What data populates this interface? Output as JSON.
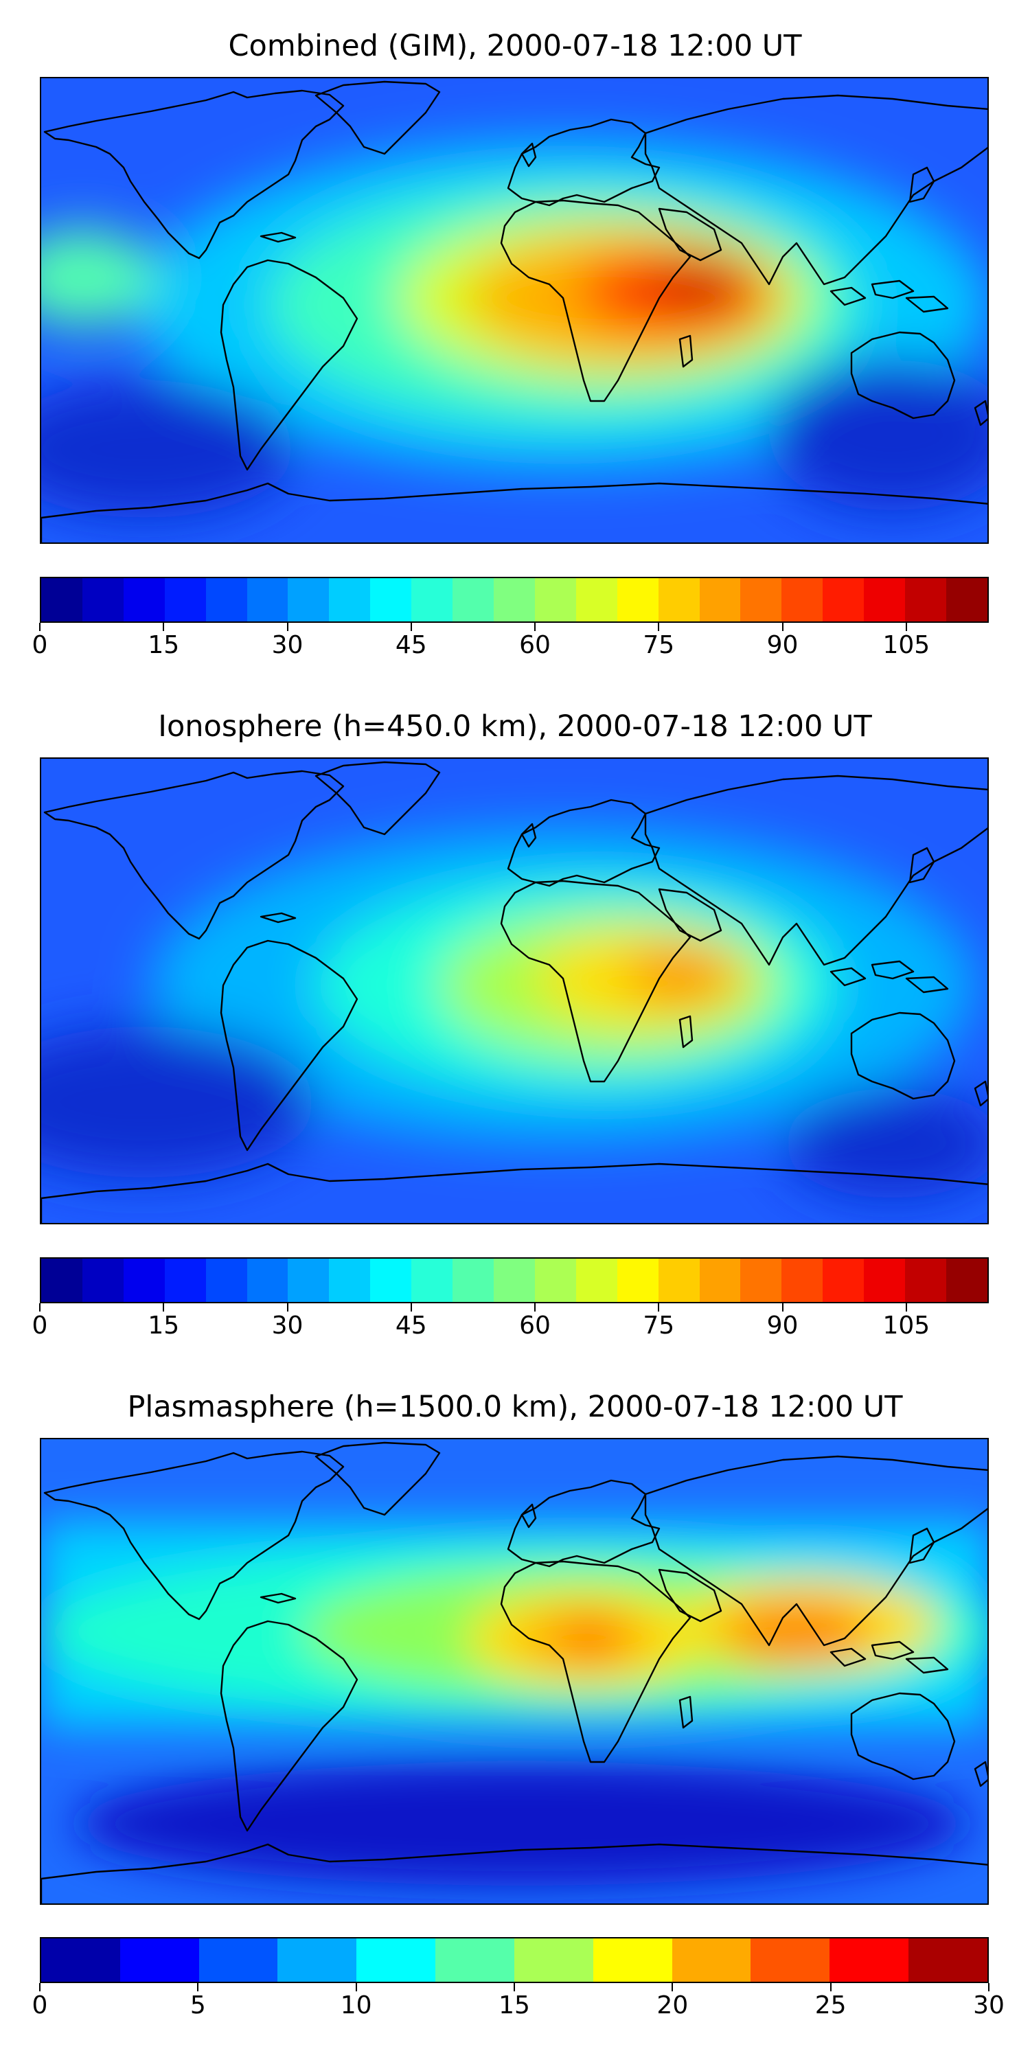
{
  "panels": [
    {
      "title": "Combined (GIM), 2000-07-18 12:00 UT",
      "colorbar": {
        "min": 0,
        "max": 115,
        "step": 5,
        "ticks": [
          "0",
          "15",
          "30",
          "45",
          "60",
          "75",
          "90",
          "105"
        ],
        "tick_values": [
          0,
          15,
          30,
          45,
          60,
          75,
          90,
          105
        ]
      }
    },
    {
      "title": "Ionosphere  (h=450.0 km), 2000-07-18 12:00 UT",
      "colorbar": {
        "min": 0,
        "max": 115,
        "step": 5,
        "ticks": [
          "0",
          "15",
          "30",
          "45",
          "60",
          "75",
          "90",
          "105"
        ],
        "tick_values": [
          0,
          15,
          30,
          45,
          60,
          75,
          90,
          105
        ]
      }
    },
    {
      "title": "Plasmasphere (h=1500.0 km), 2000-07-18 12:00 UT",
      "colorbar": {
        "min": 0,
        "max": 30,
        "step": 2.5,
        "ticks": [
          "0",
          "5",
          "10",
          "15",
          "20",
          "25",
          "30"
        ],
        "tick_values": [
          0,
          5,
          10,
          15,
          20,
          25,
          30
        ]
      }
    }
  ],
  "colormap": "jet"
}
